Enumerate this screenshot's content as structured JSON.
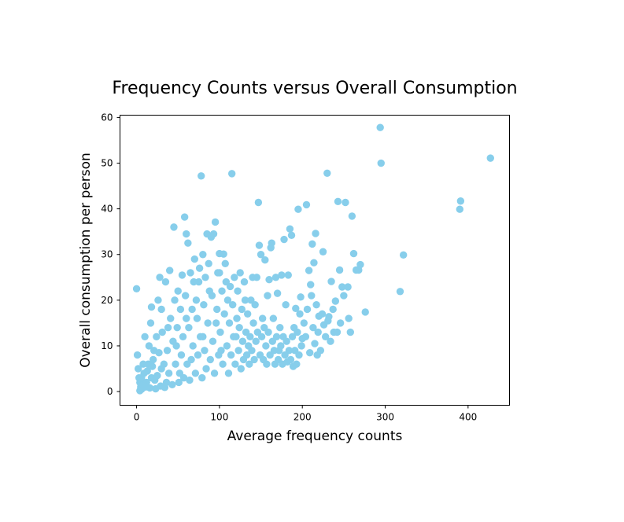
{
  "chart_data": {
    "type": "scatter",
    "title": "Frequency Counts versus Overall Consumption",
    "xlabel": "Average frequency counts",
    "ylabel": "Overall consumption per person",
    "xlim": [
      -20,
      450
    ],
    "ylim": [
      -3,
      60.5
    ],
    "xticks": [
      0,
      100,
      200,
      300,
      400
    ],
    "yticks": [
      0,
      10,
      20,
      30,
      40,
      50,
      60
    ],
    "grid": false,
    "legend": "none",
    "marker_color": "#87ceeb",
    "series": [
      {
        "values": [
          [
            0,
            22.5
          ],
          [
            1,
            8
          ],
          [
            2,
            5
          ],
          [
            3,
            3
          ],
          [
            4,
            2
          ],
          [
            5,
            1
          ],
          [
            6,
            0.5
          ],
          [
            8,
            1.5
          ],
          [
            9,
            4
          ],
          [
            10,
            12
          ],
          [
            12,
            2
          ],
          [
            14,
            6
          ],
          [
            15,
            10
          ],
          [
            17,
            15
          ],
          [
            18,
            3
          ],
          [
            18,
            18.5
          ],
          [
            20,
            7
          ],
          [
            22,
            2.5
          ],
          [
            24,
            12
          ],
          [
            26,
            20
          ],
          [
            28,
            25
          ],
          [
            30,
            5
          ],
          [
            30,
            18
          ],
          [
            35,
            24
          ],
          [
            36,
            2
          ],
          [
            38,
            14
          ],
          [
            40,
            26.5
          ],
          [
            45,
            36
          ],
          [
            48,
            10
          ],
          [
            50,
            22
          ],
          [
            52,
            4
          ],
          [
            55,
            25.5
          ],
          [
            58,
            38.2
          ],
          [
            60,
            34.5
          ],
          [
            60,
            16
          ],
          [
            62,
            32.5
          ],
          [
            65,
            26
          ],
          [
            66,
            7
          ],
          [
            70,
            29
          ],
          [
            72,
            20
          ],
          [
            75,
            24
          ],
          [
            78,
            47.2
          ],
          [
            80,
            30
          ],
          [
            80,
            12
          ],
          [
            85,
            34.5
          ],
          [
            88,
            22
          ],
          [
            90,
            33.8
          ],
          [
            93,
            34.5
          ],
          [
            95,
            37.1
          ],
          [
            96,
            15
          ],
          [
            100,
            30.2
          ],
          [
            100,
            26
          ],
          [
            102,
            9
          ],
          [
            105,
            30.1
          ],
          [
            108,
            24
          ],
          [
            110,
            20
          ],
          [
            115,
            47.7
          ],
          [
            118,
            25
          ],
          [
            120,
            12
          ],
          [
            125,
            26
          ],
          [
            130,
            24
          ],
          [
            135,
            10
          ],
          [
            138,
            20
          ],
          [
            140,
            25
          ],
          [
            145,
            25
          ],
          [
            147,
            41.4
          ],
          [
            148,
            32
          ],
          [
            150,
            30
          ],
          [
            152,
            16
          ],
          [
            155,
            28.8
          ],
          [
            158,
            21
          ],
          [
            160,
            24.5
          ],
          [
            162,
            31.5
          ],
          [
            163,
            32.5
          ],
          [
            165,
            16
          ],
          [
            168,
            25
          ],
          [
            170,
            21.5
          ],
          [
            172,
            9
          ],
          [
            175,
            25.5
          ],
          [
            178,
            33.3
          ],
          [
            180,
            19
          ],
          [
            183,
            25.5
          ],
          [
            185,
            35.6
          ],
          [
            187,
            34.2
          ],
          [
            190,
            14
          ],
          [
            192,
            18.2
          ],
          [
            195,
            39.9
          ],
          [
            198,
            20.7
          ],
          [
            200,
            11.6
          ],
          [
            205,
            40.9
          ],
          [
            208,
            26.5
          ],
          [
            210,
            23.4
          ],
          [
            212,
            32.3
          ],
          [
            214,
            28.2
          ],
          [
            216,
            34.6
          ],
          [
            218,
            8
          ],
          [
            220,
            16.5
          ],
          [
            225,
            30.6
          ],
          [
            226,
            14.6
          ],
          [
            230,
            47.8
          ],
          [
            232,
            16.4
          ],
          [
            235,
            24.1
          ],
          [
            238,
            13
          ],
          [
            240,
            19.8
          ],
          [
            243,
            41.6
          ],
          [
            245,
            26.6
          ],
          [
            248,
            22.9
          ],
          [
            252,
            41.4
          ],
          [
            255,
            22.9
          ],
          [
            260,
            38.4
          ],
          [
            262,
            30.2
          ],
          [
            265,
            26.6
          ],
          [
            268,
            26.6
          ],
          [
            270,
            27.8
          ],
          [
            276,
            17.4
          ],
          [
            294,
            57.8
          ],
          [
            295,
            50
          ],
          [
            318,
            21.9
          ],
          [
            322,
            29.9
          ],
          [
            390,
            39.9
          ],
          [
            391,
            41.7
          ],
          [
            427,
            51.1
          ],
          [
            4,
            0.2
          ],
          [
            6,
            3
          ],
          [
            8,
            6
          ],
          [
            11,
            1
          ],
          [
            13,
            4.5
          ],
          [
            16,
            0.8
          ],
          [
            19,
            5.5
          ],
          [
            21,
            9
          ],
          [
            23,
            0.6
          ],
          [
            25,
            3.5
          ],
          [
            27,
            8.5
          ],
          [
            29,
            1.2
          ],
          [
            31,
            13
          ],
          [
            33,
            6
          ],
          [
            34,
            0.9
          ],
          [
            37,
            9
          ],
          [
            39,
            4
          ],
          [
            41,
            16
          ],
          [
            43,
            1.5
          ],
          [
            44,
            11
          ],
          [
            46,
            20
          ],
          [
            47,
            6
          ],
          [
            49,
            14
          ],
          [
            51,
            2
          ],
          [
            53,
            18
          ],
          [
            54,
            8
          ],
          [
            56,
            12
          ],
          [
            57,
            3
          ],
          [
            59,
            21
          ],
          [
            61,
            6
          ],
          [
            63,
            14
          ],
          [
            64,
            2.5
          ],
          [
            67,
            18
          ],
          [
            68,
            10
          ],
          [
            69,
            24
          ],
          [
            71,
            4
          ],
          [
            73,
            16
          ],
          [
            74,
            8
          ],
          [
            76,
            27
          ],
          [
            77,
            12
          ],
          [
            79,
            3
          ],
          [
            81,
            19
          ],
          [
            82,
            9
          ],
          [
            83,
            25
          ],
          [
            84,
            5
          ],
          [
            86,
            15
          ],
          [
            87,
            28
          ],
          [
            89,
            7
          ],
          [
            91,
            21
          ],
          [
            92,
            11
          ],
          [
            94,
            4
          ],
          [
            97,
            18
          ],
          [
            98,
            26
          ],
          [
            99,
            8
          ],
          [
            101,
            13
          ],
          [
            103,
            22
          ],
          [
            104,
            6
          ],
          [
            106,
            17
          ],
          [
            107,
            28
          ],
          [
            109,
            10
          ],
          [
            111,
            4
          ],
          [
            112,
            15
          ],
          [
            113,
            23
          ],
          [
            114,
            8
          ],
          [
            116,
            19
          ],
          [
            117,
            12
          ],
          [
            119,
            6
          ],
          [
            121,
            16
          ],
          [
            122,
            22
          ],
          [
            123,
            9
          ],
          [
            124,
            14
          ],
          [
            126,
            5
          ],
          [
            127,
            18
          ],
          [
            128,
            11
          ],
          [
            129,
            7
          ],
          [
            131,
            20
          ],
          [
            132,
            13
          ],
          [
            133,
            8
          ],
          [
            134,
            17
          ],
          [
            136,
            6
          ],
          [
            137,
            12
          ],
          [
            139,
            9
          ],
          [
            141,
            15
          ],
          [
            142,
            7
          ],
          [
            143,
            19
          ],
          [
            144,
            11
          ],
          [
            146,
            13
          ],
          [
            149,
            8
          ],
          [
            151,
            12
          ],
          [
            153,
            7
          ],
          [
            154,
            14
          ],
          [
            156,
            10
          ],
          [
            157,
            6
          ],
          [
            159,
            13
          ],
          [
            161,
            8
          ],
          [
            164,
            11
          ],
          [
            166,
            9
          ],
          [
            167,
            6
          ],
          [
            169,
            12
          ],
          [
            171,
            7
          ],
          [
            173,
            14
          ],
          [
            174,
            10
          ],
          [
            176,
            6
          ],
          [
            177,
            12
          ],
          [
            179,
            8
          ],
          [
            181,
            11
          ],
          [
            182,
            6.5
          ],
          [
            184,
            9
          ],
          [
            186,
            7
          ],
          [
            188,
            12
          ],
          [
            189,
            5.5
          ],
          [
            191,
            9
          ],
          [
            193,
            6
          ],
          [
            194,
            13
          ],
          [
            196,
            8
          ],
          [
            197,
            17
          ],
          [
            199,
            10
          ],
          [
            202,
            15
          ],
          [
            204,
            12
          ],
          [
            206,
            18
          ],
          [
            209,
            8.5
          ],
          [
            211,
            21
          ],
          [
            213,
            14
          ],
          [
            215,
            10.5
          ],
          [
            217,
            19
          ],
          [
            219,
            13
          ],
          [
            222,
            9
          ],
          [
            224,
            17
          ],
          [
            228,
            12
          ],
          [
            231,
            15.5
          ],
          [
            234,
            11
          ],
          [
            237,
            18
          ],
          [
            242,
            13
          ],
          [
            246,
            15
          ],
          [
            250,
            21
          ],
          [
            256,
            16
          ],
          [
            258,
            13
          ]
        ]
      }
    ]
  }
}
